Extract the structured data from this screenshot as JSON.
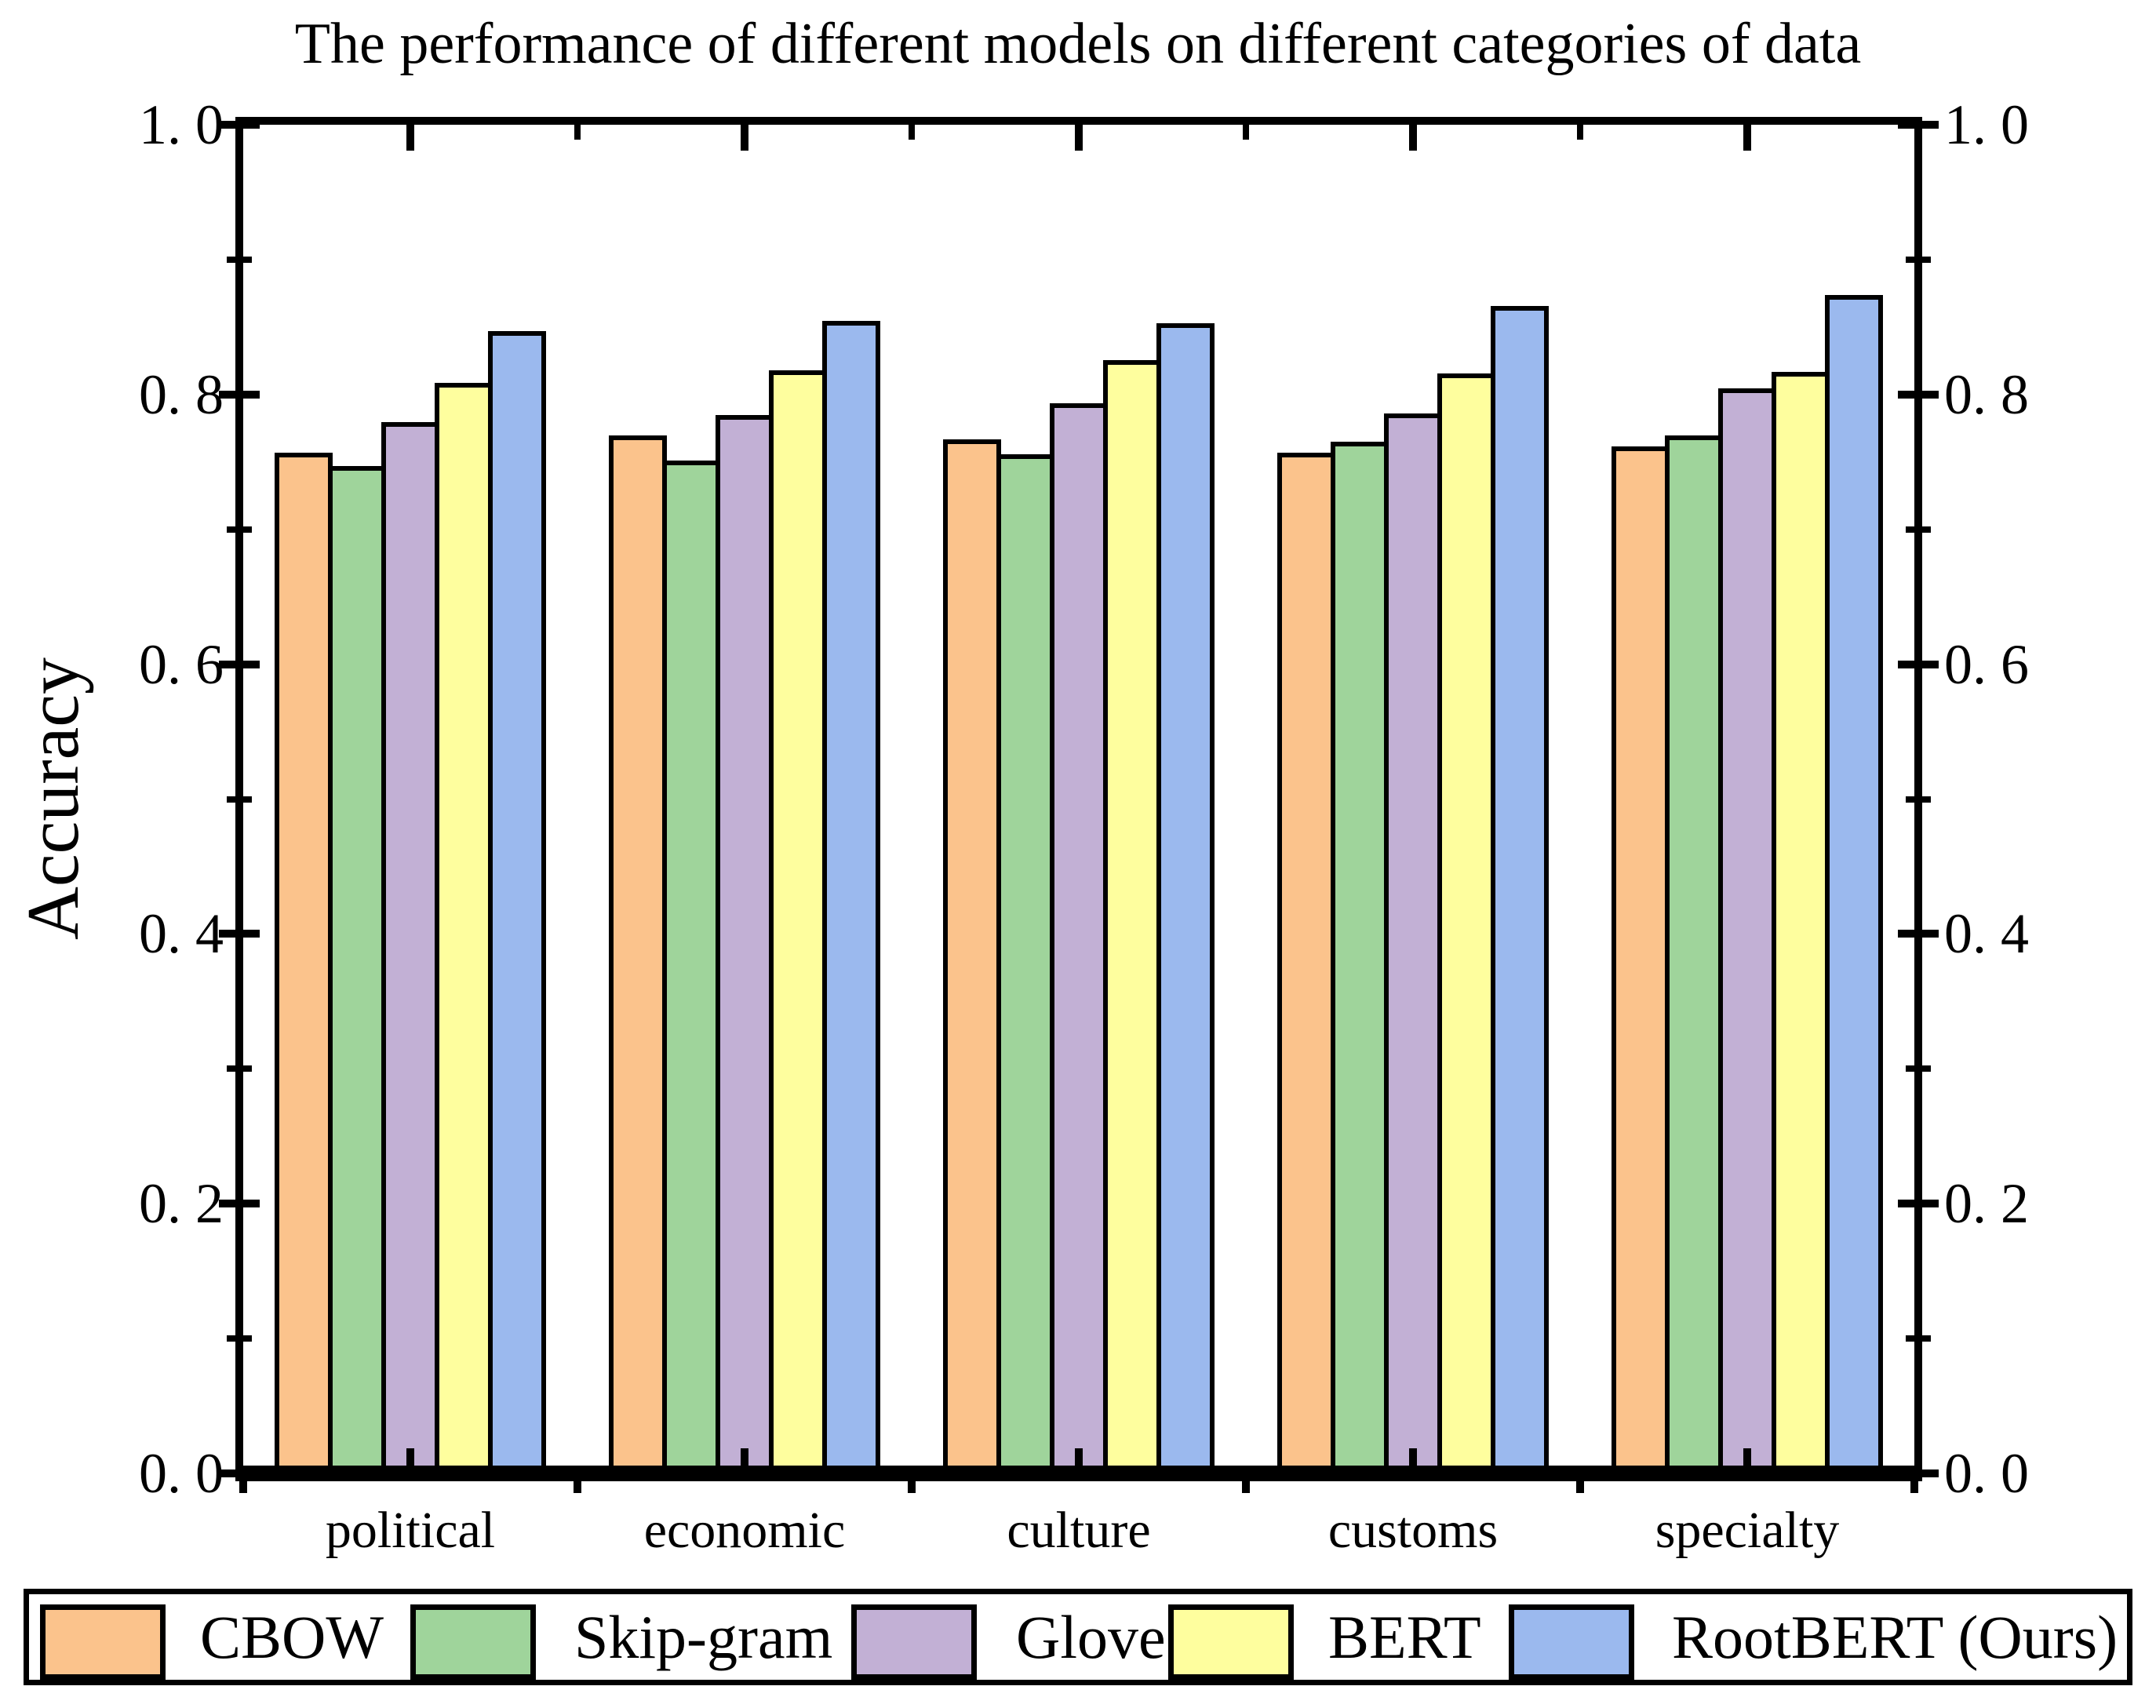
{
  "chart_data": {
    "type": "bar",
    "title": "The performance of different models on different categories of data",
    "xlabel": "",
    "ylabel": "Accuracy",
    "categories": [
      "political",
      "economic",
      "culture",
      "customs",
      "specialty"
    ],
    "series": [
      {
        "name": "CBOW",
        "color": "#FBC38C",
        "values": [
          0.755,
          0.768,
          0.765,
          0.755,
          0.76
        ]
      },
      {
        "name": "Skip-gram",
        "color": "#9FD49B",
        "values": [
          0.745,
          0.749,
          0.754,
          0.763,
          0.768
        ]
      },
      {
        "name": "Glove",
        "color": "#C2B0D5",
        "values": [
          0.778,
          0.783,
          0.792,
          0.784,
          0.803
        ]
      },
      {
        "name": "BERT",
        "color": "#FEFE9E",
        "values": [
          0.807,
          0.816,
          0.824,
          0.814,
          0.815
        ]
      },
      {
        "name": "RootBERT (Ours)",
        "color": "#9BB9EE",
        "values": [
          0.845,
          0.853,
          0.851,
          0.864,
          0.872
        ]
      }
    ],
    "ylim": [
      0.0,
      1.0
    ],
    "yticks_major": [
      0.0,
      0.2,
      0.4,
      0.6,
      0.8,
      1.0
    ],
    "ytick_labels": [
      "0. 0",
      "0. 2",
      "0. 4",
      "0. 6",
      "0. 8",
      "1. 0"
    ],
    "yticks_minor": [
      0.1,
      0.3,
      0.5,
      0.7,
      0.9
    ],
    "y_axis_labels_on_both_sides": true,
    "grid": false,
    "legend_position": "bottom",
    "bar_edge_color": "#000000"
  }
}
